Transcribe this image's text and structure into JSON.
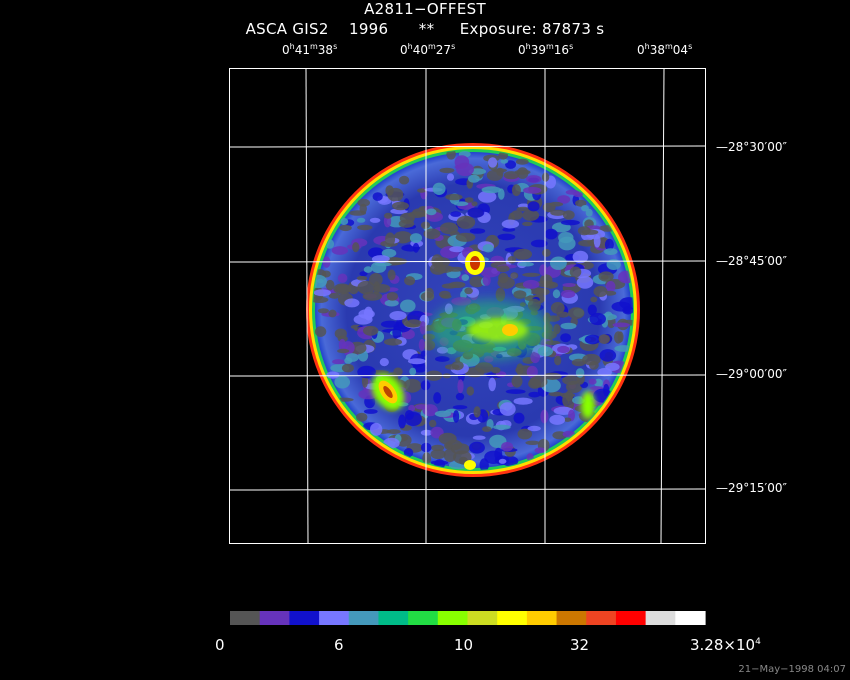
{
  "header": {
    "target": "A2811−OFFEST",
    "instrument": "ASCA GIS2",
    "year": "1996",
    "flag": "**",
    "exposure": "Exposure: 87873 s"
  },
  "ra_ticks": [
    {
      "h": "0",
      "m": "41",
      "s": "38"
    },
    {
      "h": "0",
      "m": "40",
      "s": "27"
    },
    {
      "h": "0",
      "m": "39",
      "s": "16"
    },
    {
      "h": "0",
      "m": "38",
      "s": "04"
    }
  ],
  "dec_ticks": [
    "28°30′00″",
    "28°45′00″",
    "29°00′00″",
    "29°15′00″"
  ],
  "colorbar": {
    "colors": [
      "#555555",
      "#6633bb",
      "#1111cc",
      "#7777ff",
      "#4499bb",
      "#00bb88",
      "#22dd44",
      "#88ff00",
      "#ccdd22",
      "#ffff00",
      "#ffcc00",
      "#cc7700",
      "#ee4422",
      "#ff0000",
      "#dddddd",
      "#ffffff"
    ],
    "labels": [
      "0",
      "6",
      "10",
      "32",
      "3.28×10",
      "4"
    ]
  },
  "timestamp": "21−May−1998 04:07"
}
